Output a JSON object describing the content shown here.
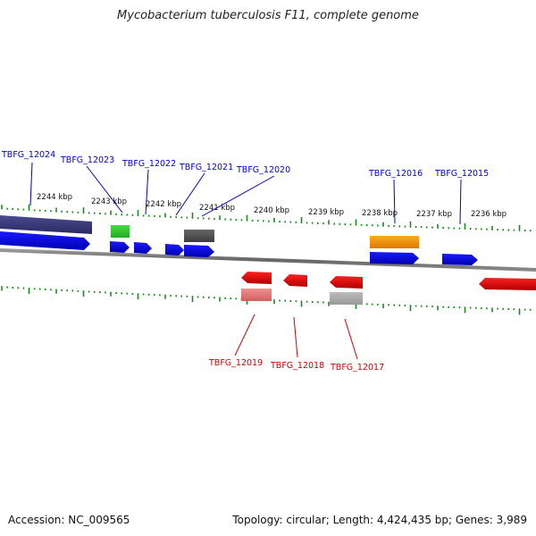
{
  "title": "Mycobacterium tuberculosis F11, complete genome",
  "footer": {
    "accession": "Accession: NC_009565",
    "stats": "Topology: circular; Length: 4,424,435 bp; Genes: 3,989"
  },
  "scale_labels": [
    "2244 kbp",
    "2243 kbp",
    "2242 kbp",
    "2241 kbp",
    "2240 kbp",
    "2239 kbp",
    "2238 kbp",
    "2237 kbp",
    "2236 kbp"
  ],
  "colors": {
    "backbone": "#7a7a7a",
    "forward_label": "#0000cc",
    "reverse_label": "#cc0000",
    "tick": "#1a8a1a",
    "blue_feature": "#0000ee",
    "red_feature": "#ee0000",
    "navy_feature": "#3c3c80",
    "green_feature": "#33cc33",
    "dark_feature": "#555555",
    "orange_feature": "#ff9900",
    "grey_feature": "#aaaaaa",
    "pink_feature": "#e88080"
  },
  "forward_genes": [
    "TBFG_12024",
    "TBFG_12023",
    "TBFG_12022",
    "TBFG_12021",
    "TBFG_12020",
    "TBFG_12016",
    "TBFG_12015"
  ],
  "reverse_genes": [
    "TBFG_12019",
    "TBFG_12018",
    "TBFG_12017"
  ]
}
